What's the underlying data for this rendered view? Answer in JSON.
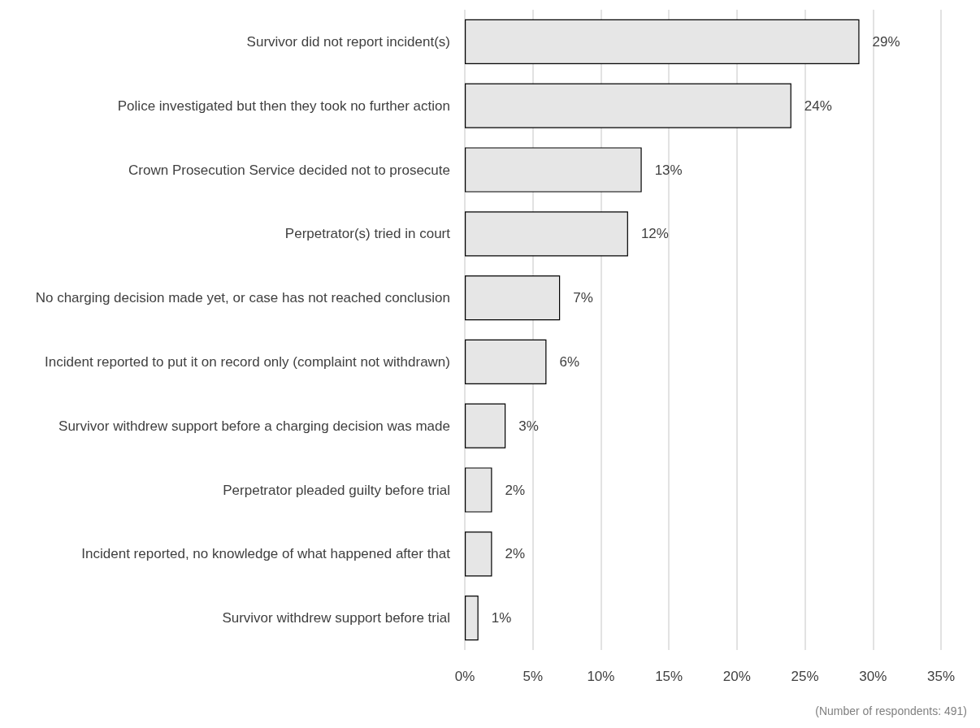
{
  "chart_data": {
    "type": "bar",
    "orientation": "horizontal",
    "categories": [
      "Survivor did not report incident(s)",
      "Police investigated but then they took no further action",
      "Crown Prosecution Service decided not to prosecute",
      "Perpetrator(s) tried in court",
      "No charging decision made yet, or case has not reached conclusion",
      "Incident reported to put it on record only (complaint not withdrawn)",
      "Survivor withdrew support before a charging decision was made",
      "Perpetrator pleaded guilty before trial",
      "Incident reported, no knowledge of what happened after that",
      "Survivor withdrew support before trial"
    ],
    "values": [
      29,
      24,
      13,
      12,
      7,
      6,
      3,
      2,
      2,
      1
    ],
    "value_labels": [
      "29%",
      "24%",
      "13%",
      "12%",
      "7%",
      "6%",
      "3%",
      "2%",
      "2%",
      "1%"
    ],
    "color": "#e6e6e6",
    "xlim": [
      0,
      35
    ],
    "xticks": [
      {
        "value": 0,
        "label": "0%"
      },
      {
        "value": 5,
        "label": "5%"
      },
      {
        "value": 10,
        "label": "10%"
      },
      {
        "value": 15,
        "label": "15%"
      },
      {
        "value": 20,
        "label": "20%"
      },
      {
        "value": 25,
        "label": "25%"
      },
      {
        "value": 30,
        "label": "30%"
      },
      {
        "value": 35,
        "label": "35%"
      }
    ],
    "grid": "x",
    "annotations": [
      "(Number of respondents: 491)"
    ]
  }
}
